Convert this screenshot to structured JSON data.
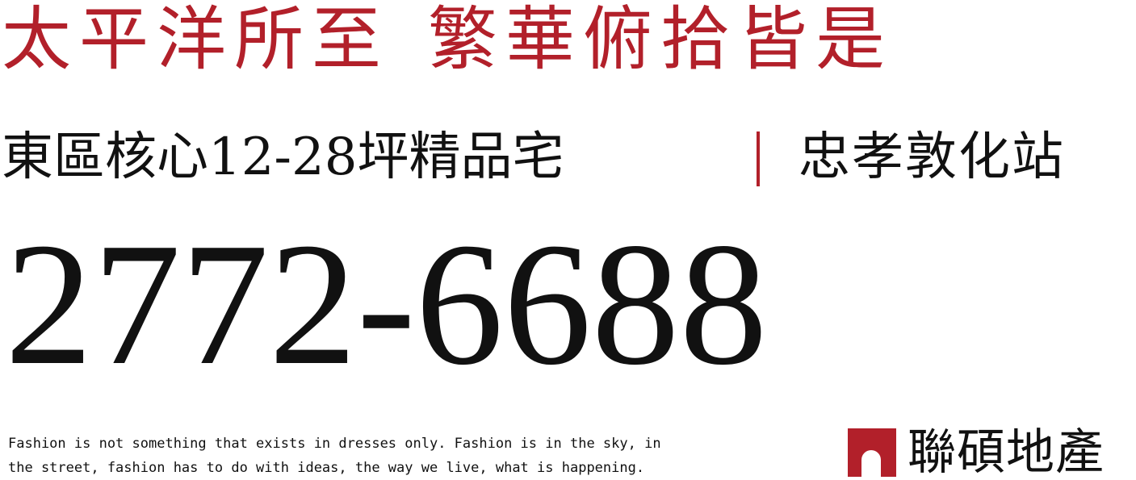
{
  "headline": {
    "part1": "太平洋所至",
    "part2": "繁華俯拾皆是"
  },
  "subline": {
    "left": "東區核心12-28坪精品宅",
    "right": "忠孝敦化站"
  },
  "phone": "2772-6688",
  "quote": {
    "line1": "Fashion is not something that exists in dresses only. Fashion is in the sky, in",
    "line2": "the street, fashion has to do with ideas, the way we live, what is happening."
  },
  "brand": {
    "name": "聯碩地產",
    "mark_icon": "arch-logo-icon"
  },
  "colors": {
    "accent": "#b2202a",
    "text": "#111111",
    "background": "#ffffff"
  }
}
